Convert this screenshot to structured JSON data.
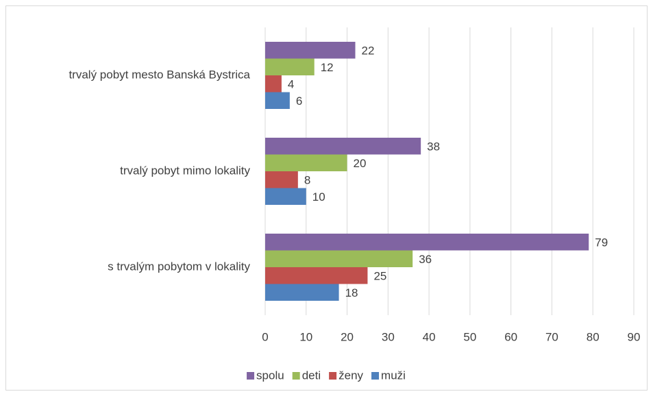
{
  "chart_data": {
    "type": "hbar",
    "categories": [
      "s trvalým pobytom v lokality",
      "trvalý pobyt mimo lokality",
      "trvalý pobyt mesto Banská Bystrica"
    ],
    "series": [
      {
        "name": "muži",
        "color": "#4f81bd",
        "values": [
          18,
          10,
          6
        ]
      },
      {
        "name": "ženy",
        "color": "#c0504d",
        "values": [
          25,
          8,
          4
        ]
      },
      {
        "name": "deti",
        "color": "#9bbb59",
        "values": [
          36,
          20,
          12
        ]
      },
      {
        "name": "spolu",
        "color": "#8064a2",
        "values": [
          79,
          38,
          22
        ]
      }
    ],
    "xlim": [
      0,
      90
    ],
    "xticks": [
      0,
      10,
      20,
      30,
      40,
      50,
      60,
      70,
      80,
      90
    ],
    "grid": true,
    "legend": "bottom"
  }
}
